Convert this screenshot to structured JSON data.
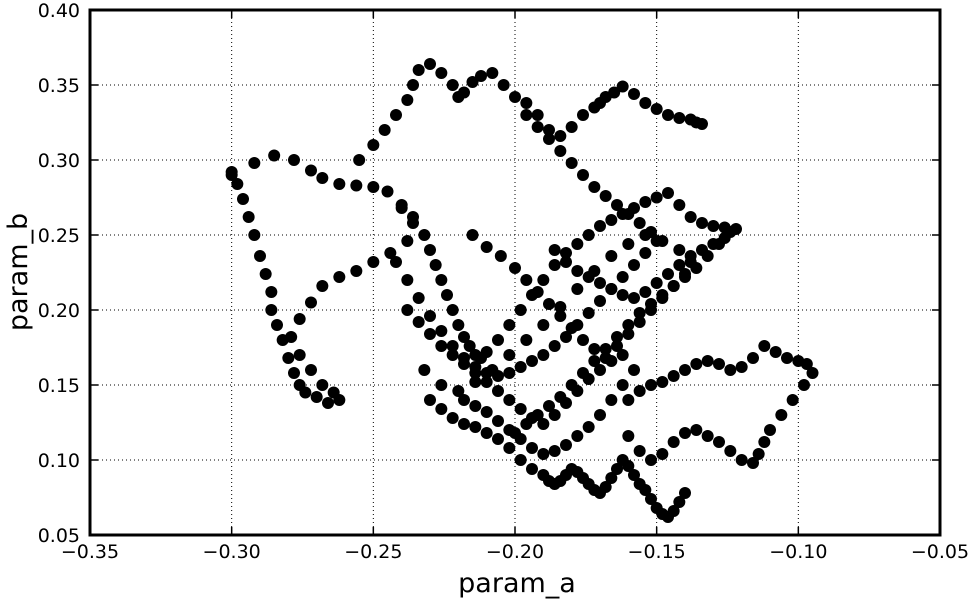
{
  "chart_data": {
    "type": "scatter",
    "title": "",
    "xlabel": "param_a",
    "ylabel": "param_b",
    "xlim": [
      -0.35,
      -0.05
    ],
    "ylim": [
      0.05,
      0.4
    ],
    "xticks": [
      -0.35,
      -0.3,
      -0.25,
      -0.2,
      -0.15,
      -0.1,
      -0.05
    ],
    "yticks": [
      0.05,
      0.1,
      0.15,
      0.2,
      0.25,
      0.3,
      0.35,
      0.4
    ],
    "xtick_labels": [
      "−0.35",
      "−0.30",
      "−0.25",
      "−0.20",
      "−0.15",
      "−0.10",
      "−0.05"
    ],
    "ytick_labels": [
      "0.05",
      "0.10",
      "0.15",
      "0.20",
      "0.25",
      "0.30",
      "0.35",
      "0.40"
    ],
    "grid": true,
    "marker_color": "#000000",
    "series": [
      {
        "x": [
          -0.3,
          -0.292,
          -0.285,
          -0.278,
          -0.272,
          -0.268,
          -0.262,
          -0.256,
          -0.25,
          -0.245,
          -0.24,
          -0.236,
          -0.238,
          -0.244,
          -0.25,
          -0.256,
          -0.262,
          -0.268,
          -0.272,
          -0.276,
          -0.279,
          -0.276,
          -0.272,
          -0.268,
          -0.264,
          -0.262,
          -0.266,
          -0.27,
          -0.274,
          -0.276,
          -0.278,
          -0.28,
          -0.282,
          -0.284,
          -0.286,
          -0.286,
          -0.288,
          -0.29,
          -0.292,
          -0.294,
          -0.296,
          -0.298,
          -0.3
        ],
        "y": [
          0.292,
          0.298,
          0.303,
          0.3,
          0.293,
          0.288,
          0.284,
          0.283,
          0.282,
          0.279,
          0.27,
          0.258,
          0.246,
          0.238,
          0.232,
          0.226,
          0.222,
          0.216,
          0.205,
          0.194,
          0.182,
          0.17,
          0.16,
          0.15,
          0.145,
          0.14,
          0.138,
          0.142,
          0.145,
          0.15,
          0.158,
          0.168,
          0.18,
          0.19,
          0.2,
          0.212,
          0.224,
          0.236,
          0.25,
          0.262,
          0.274,
          0.284,
          0.29
        ]
      },
      {
        "x": [
          -0.255,
          -0.25,
          -0.246,
          -0.242,
          -0.238,
          -0.236,
          -0.234,
          -0.23,
          -0.226,
          -0.222,
          -0.22,
          -0.218,
          -0.215,
          -0.212,
          -0.208,
          -0.204,
          -0.2,
          -0.196,
          -0.192,
          -0.188,
          -0.184,
          -0.18,
          -0.176,
          -0.172,
          -0.17,
          -0.168,
          -0.165,
          -0.162,
          -0.158,
          -0.154,
          -0.15,
          -0.146,
          -0.142,
          -0.138,
          -0.136,
          -0.134
        ],
        "y": [
          0.3,
          0.31,
          0.32,
          0.33,
          0.34,
          0.35,
          0.36,
          0.364,
          0.358,
          0.35,
          0.342,
          0.345,
          0.352,
          0.356,
          0.358,
          0.35,
          0.342,
          0.338,
          0.33,
          0.32,
          0.316,
          0.322,
          0.33,
          0.335,
          0.338,
          0.342,
          0.345,
          0.349,
          0.344,
          0.338,
          0.334,
          0.33,
          0.328,
          0.327,
          0.325,
          0.324
        ]
      },
      {
        "x": [
          -0.24,
          -0.236,
          -0.232,
          -0.23,
          -0.228,
          -0.226,
          -0.224,
          -0.222,
          -0.22,
          -0.218,
          -0.216,
          -0.214,
          -0.212,
          -0.21,
          -0.206,
          -0.202,
          -0.198,
          -0.194,
          -0.19,
          -0.186,
          -0.182,
          -0.178,
          -0.174,
          -0.17,
          -0.166,
          -0.162,
          -0.158,
          -0.154,
          -0.15,
          -0.146,
          -0.142,
          -0.138,
          -0.134,
          -0.13,
          -0.126,
          -0.122
        ],
        "y": [
          0.268,
          0.262,
          0.25,
          0.24,
          0.23,
          0.22,
          0.21,
          0.2,
          0.19,
          0.182,
          0.176,
          0.17,
          0.168,
          0.172,
          0.18,
          0.19,
          0.2,
          0.21,
          0.22,
          0.23,
          0.238,
          0.244,
          0.25,
          0.256,
          0.26,
          0.264,
          0.268,
          0.272,
          0.275,
          0.278,
          0.27,
          0.262,
          0.258,
          0.256,
          0.255,
          0.254
        ]
      },
      {
        "x": [
          -0.23,
          -0.226,
          -0.222,
          -0.218,
          -0.214,
          -0.21,
          -0.206,
          -0.202,
          -0.198,
          -0.194,
          -0.19,
          -0.188,
          -0.186,
          -0.184,
          -0.182,
          -0.18,
          -0.178,
          -0.176,
          -0.174,
          -0.172,
          -0.17,
          -0.168,
          -0.166,
          -0.164,
          -0.162,
          -0.16,
          -0.158,
          -0.156,
          -0.154,
          -0.152,
          -0.15,
          -0.148,
          -0.146,
          -0.144,
          -0.142,
          -0.14
        ],
        "y": [
          0.14,
          0.134,
          0.128,
          0.124,
          0.122,
          0.118,
          0.114,
          0.108,
          0.1,
          0.094,
          0.09,
          0.086,
          0.084,
          0.086,
          0.09,
          0.094,
          0.092,
          0.088,
          0.084,
          0.08,
          0.078,
          0.082,
          0.088,
          0.094,
          0.1,
          0.096,
          0.09,
          0.084,
          0.08,
          0.074,
          0.068,
          0.064,
          0.062,
          0.066,
          0.072,
          0.078
        ]
      },
      {
        "x": [
          -0.16,
          -0.156,
          -0.152,
          -0.148,
          -0.144,
          -0.14,
          -0.136,
          -0.132,
          -0.128,
          -0.124,
          -0.12,
          -0.116,
          -0.112,
          -0.108,
          -0.104,
          -0.1,
          -0.097,
          -0.095,
          -0.098,
          -0.102,
          -0.106,
          -0.11,
          -0.112,
          -0.114,
          -0.116,
          -0.12,
          -0.124,
          -0.128,
          -0.132,
          -0.136,
          -0.14,
          -0.144,
          -0.148,
          -0.152,
          -0.156,
          -0.16
        ],
        "y": [
          0.14,
          0.146,
          0.15,
          0.152,
          0.156,
          0.16,
          0.164,
          0.166,
          0.164,
          0.16,
          0.162,
          0.168,
          0.176,
          0.172,
          0.168,
          0.166,
          0.164,
          0.158,
          0.15,
          0.14,
          0.13,
          0.12,
          0.112,
          0.104,
          0.098,
          0.1,
          0.106,
          0.112,
          0.116,
          0.12,
          0.118,
          0.112,
          0.104,
          0.1,
          0.106,
          0.116
        ]
      },
      {
        "x": [
          -0.215,
          -0.21,
          -0.205,
          -0.2,
          -0.196,
          -0.192,
          -0.188,
          -0.184,
          -0.18,
          -0.176,
          -0.172,
          -0.168,
          -0.164,
          -0.16,
          -0.156,
          -0.152,
          -0.148,
          -0.144,
          -0.14,
          -0.138,
          -0.142,
          -0.148,
          -0.154,
          -0.16,
          -0.166,
          -0.172,
          -0.178,
          -0.184,
          -0.19,
          -0.196,
          -0.202,
          -0.208,
          -0.214,
          -0.22,
          -0.226,
          -0.232
        ],
        "y": [
          0.25,
          0.242,
          0.236,
          0.228,
          0.22,
          0.212,
          0.204,
          0.196,
          0.188,
          0.18,
          0.174,
          0.168,
          0.176,
          0.184,
          0.192,
          0.2,
          0.208,
          0.216,
          0.224,
          0.232,
          0.24,
          0.246,
          0.25,
          0.244,
          0.236,
          0.226,
          0.214,
          0.202,
          0.19,
          0.18,
          0.17,
          0.16,
          0.152,
          0.146,
          0.15,
          0.16
        ]
      },
      {
        "x": [
          -0.238,
          -0.234,
          -0.23,
          -0.226,
          -0.222,
          -0.218,
          -0.214,
          -0.21,
          -0.206,
          -0.202,
          -0.198,
          -0.194,
          -0.19,
          -0.186,
          -0.182,
          -0.178,
          -0.174,
          -0.17,
          -0.166,
          -0.162,
          -0.158,
          -0.162,
          -0.166,
          -0.17,
          -0.174,
          -0.178,
          -0.182,
          -0.186,
          -0.19,
          -0.194,
          -0.198,
          -0.202,
          -0.206,
          -0.21,
          -0.214,
          -0.218
        ],
        "y": [
          0.2,
          0.192,
          0.184,
          0.176,
          0.17,
          0.164,
          0.158,
          0.152,
          0.146,
          0.14,
          0.134,
          0.128,
          0.124,
          0.13,
          0.138,
          0.146,
          0.154,
          0.16,
          0.166,
          0.17,
          0.16,
          0.15,
          0.14,
          0.13,
          0.122,
          0.116,
          0.11,
          0.106,
          0.104,
          0.108,
          0.114,
          0.12,
          0.126,
          0.132,
          0.136,
          0.14
        ]
      },
      {
        "x": [
          -0.196,
          -0.192,
          -0.188,
          -0.184,
          -0.18,
          -0.176,
          -0.172,
          -0.168,
          -0.164,
          -0.16,
          -0.156,
          -0.152,
          -0.15,
          -0.154,
          -0.158,
          -0.162,
          -0.166,
          -0.17,
          -0.174,
          -0.178,
          -0.182,
          -0.186,
          -0.19,
          -0.194,
          -0.198,
          -0.202,
          -0.206,
          -0.21,
          -0.214,
          -0.218,
          -0.222,
          -0.226,
          -0.23,
          -0.234,
          -0.238,
          -0.242
        ],
        "y": [
          0.33,
          0.322,
          0.314,
          0.306,
          0.298,
          0.29,
          0.282,
          0.276,
          0.27,
          0.264,
          0.258,
          0.252,
          0.246,
          0.238,
          0.23,
          0.222,
          0.214,
          0.206,
          0.198,
          0.19,
          0.182,
          0.176,
          0.17,
          0.166,
          0.162,
          0.158,
          0.156,
          0.158,
          0.162,
          0.168,
          0.176,
          0.186,
          0.196,
          0.208,
          0.22,
          0.232
        ]
      },
      {
        "x": [
          -0.186,
          -0.182,
          -0.178,
          -0.174,
          -0.17,
          -0.166,
          -0.162,
          -0.158,
          -0.154,
          -0.15,
          -0.146,
          -0.142,
          -0.138,
          -0.134,
          -0.13,
          -0.126,
          -0.124,
          -0.128,
          -0.132,
          -0.136,
          -0.14,
          -0.144,
          -0.148,
          -0.152,
          -0.156,
          -0.16,
          -0.164,
          -0.168,
          -0.172,
          -0.176,
          -0.18,
          -0.184,
          -0.188,
          -0.192,
          -0.196,
          -0.2
        ],
        "y": [
          0.24,
          0.232,
          0.226,
          0.222,
          0.218,
          0.214,
          0.21,
          0.208,
          0.212,
          0.218,
          0.224,
          0.23,
          0.236,
          0.24,
          0.244,
          0.248,
          0.252,
          0.244,
          0.236,
          0.228,
          0.222,
          0.216,
          0.21,
          0.204,
          0.198,
          0.19,
          0.182,
          0.174,
          0.166,
          0.158,
          0.15,
          0.142,
          0.136,
          0.13,
          0.124,
          0.118
        ]
      }
    ]
  }
}
